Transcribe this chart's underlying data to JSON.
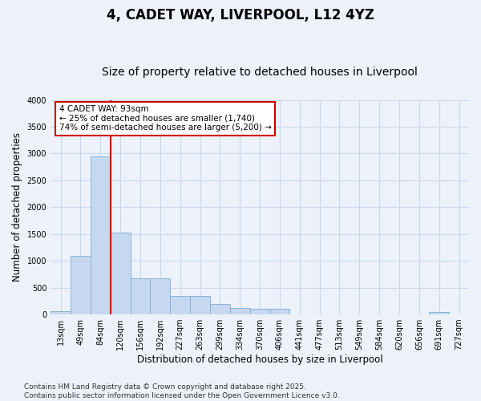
{
  "title": "4, CADET WAY, LIVERPOOL, L12 4YZ",
  "subtitle": "Size of property relative to detached houses in Liverpool",
  "xlabel": "Distribution of detached houses by size in Liverpool",
  "ylabel": "Number of detached properties",
  "categories": [
    "13sqm",
    "49sqm",
    "84sqm",
    "120sqm",
    "156sqm",
    "192sqm",
    "227sqm",
    "263sqm",
    "299sqm",
    "334sqm",
    "370sqm",
    "406sqm",
    "441sqm",
    "477sqm",
    "513sqm",
    "549sqm",
    "584sqm",
    "620sqm",
    "656sqm",
    "691sqm",
    "727sqm"
  ],
  "values": [
    60,
    1100,
    2950,
    1530,
    680,
    680,
    340,
    340,
    200,
    115,
    110,
    110,
    0,
    0,
    0,
    0,
    0,
    0,
    0,
    40,
    0
  ],
  "bar_color": "#c5d8ef",
  "bar_edgecolor": "#7dadd4",
  "vline_color": "#cc0000",
  "vline_x_index": 2,
  "ylim": [
    0,
    4000
  ],
  "yticks": [
    0,
    500,
    1000,
    1500,
    2000,
    2500,
    3000,
    3500,
    4000
  ],
  "annotation_text": "4 CADET WAY: 93sqm\n← 25% of detached houses are smaller (1,740)\n74% of semi-detached houses are larger (5,200) →",
  "annotation_box_edgecolor": "#cc0000",
  "annotation_box_facecolor": "#ffffff",
  "background_color": "#edf2fa",
  "grid_color": "#c8d8ee",
  "footer_text": "Contains HM Land Registry data © Crown copyright and database right 2025.\nContains public sector information licensed under the Open Government Licence v3.0.",
  "title_fontsize": 12,
  "subtitle_fontsize": 10,
  "axis_label_fontsize": 8.5,
  "tick_fontsize": 7,
  "footer_fontsize": 6.5,
  "annotation_fontsize": 7.5
}
